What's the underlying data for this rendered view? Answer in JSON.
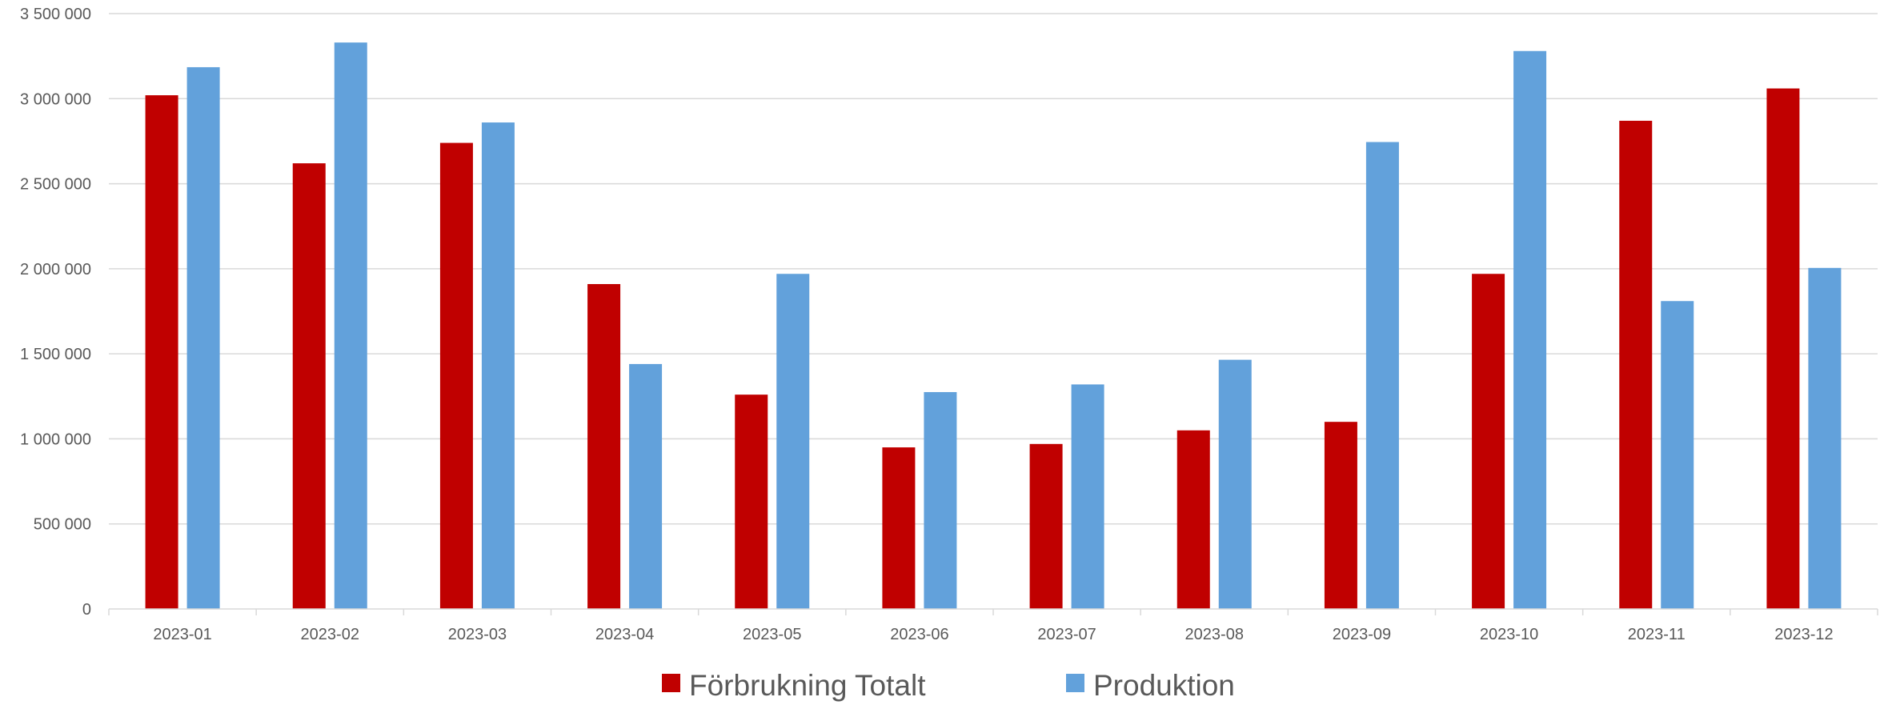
{
  "chart_data": {
    "type": "bar",
    "title": "",
    "xlabel": "",
    "ylabel": "",
    "categories": [
      "2023-01",
      "2023-02",
      "2023-03",
      "2023-04",
      "2023-05",
      "2023-06",
      "2023-07",
      "2023-08",
      "2023-09",
      "2023-10",
      "2023-11",
      "2023-12"
    ],
    "series": [
      {
        "name": "Förbrukning Totalt",
        "color": "#C00000",
        "values": [
          3020000,
          2620000,
          2740000,
          1910000,
          1260000,
          950000,
          970000,
          1050000,
          1100000,
          1970000,
          2870000,
          3060000
        ]
      },
      {
        "name": "Produktion",
        "color": "#62A1DB",
        "values": [
          3185000,
          3330000,
          2860000,
          1440000,
          1970000,
          1275000,
          1320000,
          1465000,
          2745000,
          3280000,
          1810000,
          2005000
        ]
      }
    ],
    "ylim": [
      0,
      3500000
    ],
    "yticks": [
      0,
      500000,
      1000000,
      1500000,
      2000000,
      2500000,
      3000000,
      3500000
    ],
    "ytick_labels": [
      "0",
      "500 000",
      "1 000 000",
      "1 500 000",
      "2 000 000",
      "2 500 000",
      "3 000 000",
      "3 500 000"
    ],
    "grid": true,
    "legend_position": "bottom"
  }
}
